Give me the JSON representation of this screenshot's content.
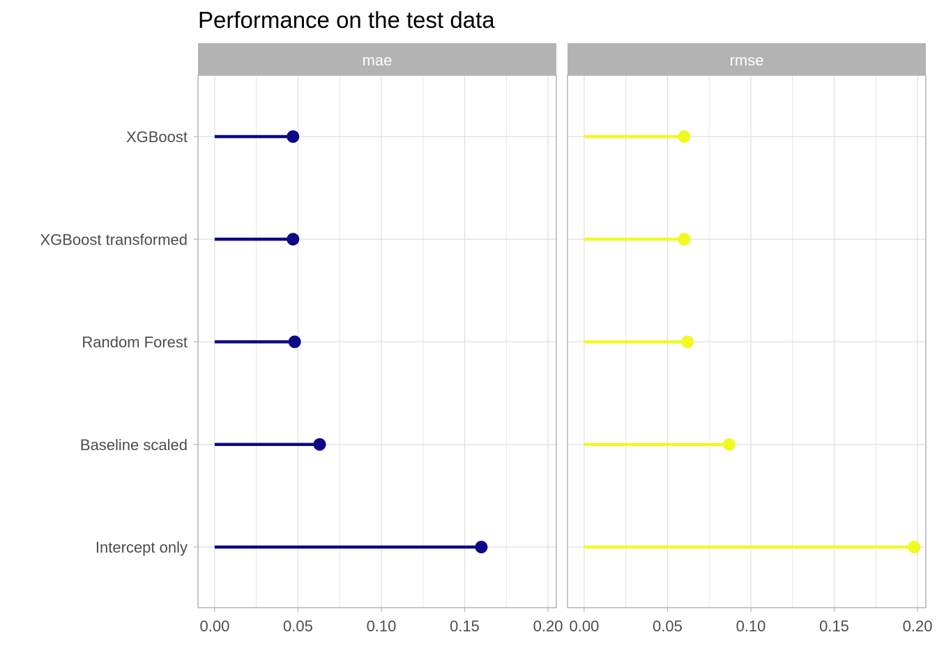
{
  "chart_data": {
    "type": "lollipop",
    "title": "Performance on the test data",
    "xlabel": "",
    "ylabel": "",
    "categories": [
      "XGBoost",
      "XGBoost transformed",
      "Random Forest",
      "Baseline scaled",
      "Intercept only"
    ],
    "xlim": [
      -0.01,
      0.205
    ],
    "x_ticks": [
      0.0,
      0.05,
      0.1,
      0.15,
      0.2
    ],
    "x_tick_labels": [
      "0.00",
      "0.05",
      "0.10",
      "0.15",
      "0.20"
    ],
    "grid": true,
    "legend": "none",
    "panels": [
      {
        "name": "mae",
        "color": "#0d0887",
        "values": [
          0.047,
          0.047,
          0.048,
          0.063,
          0.16
        ]
      },
      {
        "name": "rmse",
        "color": "#f0f921",
        "values": [
          0.06,
          0.06,
          0.062,
          0.087,
          0.198
        ]
      }
    ]
  },
  "colors": {
    "strip_background": "#b3b3b3",
    "grid": "#dedede",
    "panel_border": "#b3b3b3"
  }
}
